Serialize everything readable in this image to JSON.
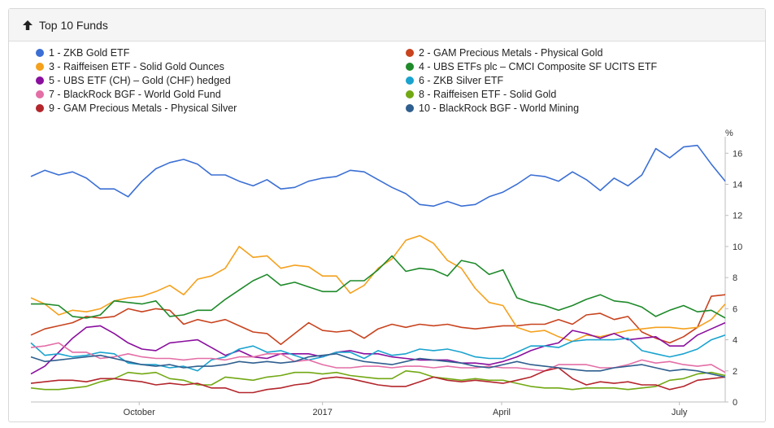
{
  "panel": {
    "title": "Top 10 Funds"
  },
  "chart_data": {
    "type": "line",
    "ylabel": "%",
    "ylim": [
      0,
      16.8
    ],
    "yticks": [
      "0",
      "2",
      "4",
      "6",
      "8",
      "10",
      "12",
      "14",
      "16"
    ],
    "xlabels": [
      "October",
      "2017",
      "April",
      "July"
    ],
    "grid": false,
    "legend_placement": "top",
    "series": [
      {
        "name": "1 - ZKB Gold ETF",
        "color": "#3b6fd4",
        "values": [
          14.5,
          14.9,
          14.6,
          14.8,
          14.4,
          13.7,
          13.7,
          13.2,
          14.2,
          15.0,
          15.4,
          15.6,
          15.3,
          14.6,
          14.6,
          14.2,
          13.9,
          14.3,
          13.7,
          13.8,
          14.2,
          14.4,
          14.5,
          14.9,
          14.8,
          14.3,
          13.8,
          13.4,
          12.7,
          12.6,
          12.9,
          12.6,
          12.7,
          13.2,
          13.5,
          14.0,
          14.6,
          14.5,
          14.2,
          14.8,
          14.3,
          13.6,
          14.4,
          13.9,
          14.6,
          16.3,
          15.7,
          16.4,
          16.5,
          15.3,
          14.2
        ]
      },
      {
        "name": "2 - GAM Precious Metals - Physical Gold",
        "color": "#c8431e",
        "values": [
          4.3,
          4.7,
          4.9,
          5.1,
          5.5,
          5.4,
          5.5,
          6.0,
          5.8,
          6.0,
          5.9,
          5.0,
          5.3,
          5.1,
          5.3,
          4.9,
          4.5,
          4.4,
          3.7,
          4.4,
          5.1,
          4.6,
          4.5,
          4.6,
          4.1,
          4.7,
          5.0,
          4.8,
          5.0,
          4.9,
          5.0,
          4.8,
          4.7,
          4.8,
          4.9,
          4.9,
          5.0,
          5.0,
          5.3,
          5.0,
          5.6,
          5.7,
          5.3,
          5.5,
          4.5,
          4.1,
          3.8,
          4.2,
          4.8,
          6.8,
          6.9
        ]
      },
      {
        "name": "3 - Raiffeisen ETF - Solid Gold Ounces",
        "color": "#f4a11d",
        "values": [
          6.7,
          6.3,
          5.6,
          5.9,
          5.8,
          6.0,
          6.5,
          6.7,
          6.8,
          7.1,
          7.5,
          6.9,
          7.9,
          8.1,
          8.6,
          10.0,
          9.3,
          9.4,
          8.6,
          8.8,
          8.7,
          8.1,
          8.1,
          7.0,
          7.5,
          8.6,
          9.2,
          10.4,
          10.7,
          10.2,
          9.1,
          8.6,
          7.3,
          6.4,
          6.2,
          4.8,
          4.5,
          4.6,
          4.2,
          3.9,
          4.3,
          4.2,
          4.4,
          4.6,
          4.7,
          4.8,
          4.8,
          4.7,
          4.8,
          5.3,
          6.3
        ]
      },
      {
        "name": "4 - UBS ETFs plc – CMCI Composite SF UCITS ETF",
        "color": "#1e8a2a",
        "values": [
          6.3,
          6.3,
          6.2,
          5.5,
          5.4,
          5.6,
          6.5,
          6.4,
          6.3,
          6.5,
          5.5,
          5.6,
          5.9,
          5.9,
          6.6,
          7.2,
          7.8,
          8.2,
          7.5,
          7.7,
          7.4,
          7.1,
          7.1,
          7.8,
          7.8,
          8.5,
          9.4,
          8.4,
          8.6,
          8.5,
          8.1,
          9.1,
          8.9,
          8.2,
          8.5,
          6.7,
          6.4,
          6.2,
          5.9,
          6.2,
          6.6,
          6.9,
          6.5,
          6.4,
          6.1,
          5.5,
          5.9,
          6.2,
          5.8,
          5.9,
          5.4
        ]
      },
      {
        "name": "5 - UBS ETF (CH) – Gold (CHF) hedged",
        "color": "#8a0f9e",
        "values": [
          1.8,
          2.3,
          3.2,
          4.1,
          4.8,
          4.9,
          4.4,
          3.8,
          3.4,
          3.3,
          3.8,
          3.9,
          4.0,
          3.5,
          3.0,
          3.3,
          2.9,
          2.8,
          3.1,
          3.1,
          3.1,
          2.9,
          3.2,
          3.3,
          3.1,
          3.1,
          2.9,
          2.8,
          2.7,
          2.7,
          2.7,
          2.5,
          2.5,
          2.4,
          2.6,
          2.9,
          3.3,
          3.6,
          3.8,
          4.6,
          4.4,
          4.1,
          4.4,
          4.0,
          4.1,
          4.2,
          3.6,
          3.6,
          4.3,
          4.7,
          5.1
        ]
      },
      {
        "name": "6 - ZKB Silver ETF",
        "color": "#1aa3cf",
        "values": [
          3.8,
          3.0,
          3.1,
          2.9,
          3.0,
          3.2,
          3.1,
          2.5,
          2.4,
          2.4,
          2.2,
          2.3,
          2.0,
          2.7,
          2.9,
          3.4,
          3.6,
          3.2,
          3.3,
          3.0,
          2.7,
          2.9,
          3.2,
          3.2,
          2.8,
          3.3,
          3.0,
          3.1,
          3.4,
          3.3,
          3.4,
          3.2,
          2.9,
          2.8,
          2.8,
          3.2,
          3.6,
          3.6,
          3.5,
          3.9,
          4.0,
          4.0,
          4.0,
          4.1,
          3.3,
          3.1,
          2.9,
          3.1,
          3.4,
          4.0,
          4.3
        ]
      },
      {
        "name": "7 - BlackRock BGF - World Gold Fund",
        "color": "#e46ea6",
        "values": [
          3.5,
          3.6,
          3.8,
          3.2,
          3.2,
          2.8,
          2.9,
          3.1,
          2.9,
          2.8,
          2.8,
          2.7,
          2.8,
          2.8,
          2.7,
          2.9,
          2.9,
          3.1,
          3.1,
          2.6,
          2.7,
          2.4,
          2.2,
          2.2,
          2.3,
          2.3,
          2.2,
          2.3,
          2.3,
          2.2,
          2.3,
          2.2,
          2.2,
          2.3,
          2.2,
          2.2,
          2.1,
          2.0,
          2.4,
          2.4,
          2.4,
          2.2,
          2.2,
          2.4,
          2.7,
          2.5,
          2.6,
          2.4,
          2.3,
          2.4,
          1.9
        ]
      },
      {
        "name": "8 - Raiffeisen ETF - Solid Gold",
        "color": "#72a813",
        "values": [
          0.9,
          0.8,
          0.8,
          0.9,
          1.0,
          1.3,
          1.5,
          1.9,
          1.8,
          1.9,
          1.5,
          1.4,
          1.1,
          1.1,
          1.6,
          1.5,
          1.4,
          1.6,
          1.7,
          1.9,
          1.9,
          1.8,
          1.9,
          1.7,
          1.6,
          1.5,
          1.5,
          2.0,
          1.9,
          1.6,
          1.5,
          1.4,
          1.5,
          1.4,
          1.4,
          1.2,
          1.0,
          0.9,
          0.9,
          0.8,
          0.9,
          0.9,
          0.9,
          0.8,
          0.9,
          1.0,
          1.4,
          1.5,
          1.8,
          1.9,
          1.7
        ]
      },
      {
        "name": "9 - GAM Precious Metals - Physical Silver",
        "color": "#b3262c",
        "values": [
          1.2,
          1.3,
          1.4,
          1.4,
          1.3,
          1.5,
          1.5,
          1.4,
          1.3,
          1.1,
          1.2,
          1.1,
          1.2,
          0.9,
          0.9,
          0.6,
          0.6,
          0.8,
          0.9,
          1.1,
          1.2,
          1.5,
          1.6,
          1.5,
          1.3,
          1.1,
          1.0,
          1.0,
          1.3,
          1.6,
          1.4,
          1.3,
          1.4,
          1.3,
          1.2,
          1.4,
          1.6,
          2.0,
          2.2,
          1.5,
          1.1,
          1.3,
          1.2,
          1.3,
          1.1,
          1.1,
          0.8,
          1.0,
          1.4,
          1.5,
          1.6
        ]
      },
      {
        "name": "10 - BlackRock BGF - World Mining",
        "color": "#2f5f8f",
        "values": [
          2.9,
          2.6,
          2.7,
          2.8,
          2.9,
          3.0,
          2.8,
          2.6,
          2.4,
          2.3,
          2.4,
          2.2,
          2.3,
          2.3,
          2.4,
          2.6,
          2.5,
          2.6,
          2.5,
          2.6,
          2.9,
          3.0,
          3.1,
          2.8,
          2.6,
          2.5,
          2.4,
          2.6,
          2.8,
          2.7,
          2.6,
          2.5,
          2.3,
          2.2,
          2.4,
          2.6,
          2.4,
          2.3,
          2.2,
          2.1,
          2.0,
          2.0,
          2.2,
          2.3,
          2.4,
          2.2,
          2.0,
          2.1,
          2.0,
          1.8,
          1.6
        ]
      }
    ]
  }
}
